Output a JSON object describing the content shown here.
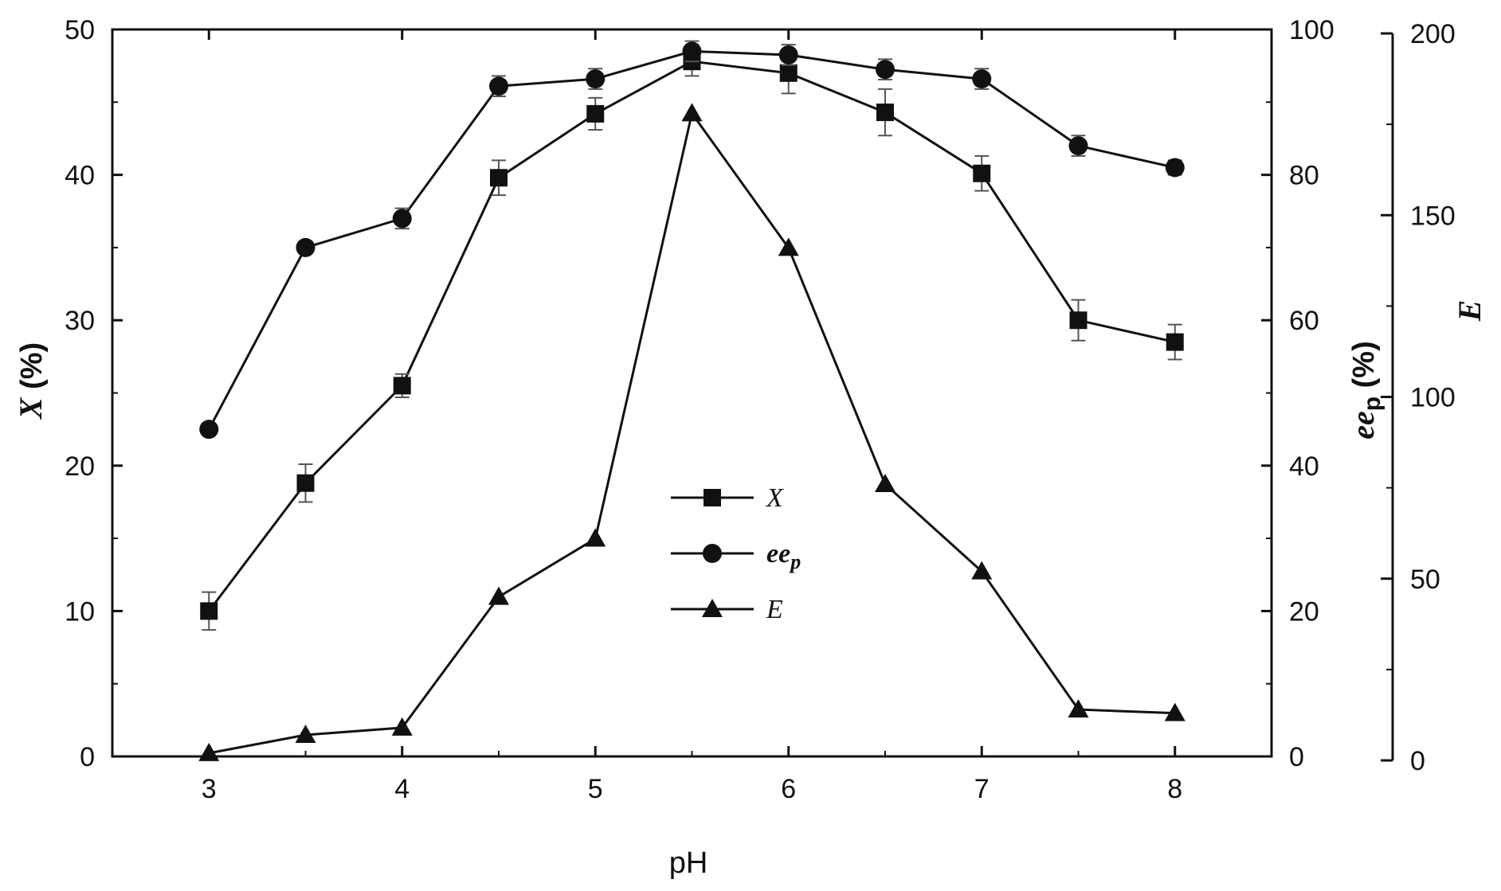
{
  "chart_data": {
    "type": "line",
    "title": "",
    "xlabel": "pH",
    "x": [
      3,
      3.5,
      4,
      4.5,
      5,
      5.5,
      6,
      6.5,
      7,
      7.5,
      8
    ],
    "xlim": [
      2.5,
      8.5
    ],
    "xticks": [
      "3",
      "4",
      "5",
      "6",
      "7",
      "8"
    ],
    "axes": {
      "left": {
        "label_main": "X",
        "label_unit": " (%)",
        "ylim": [
          0,
          50
        ],
        "ticks": [
          "0",
          "10",
          "20",
          "30",
          "40",
          "50"
        ]
      },
      "right1": {
        "label_main": "ee",
        "label_sub": "p",
        "label_unit": " (%)",
        "ylim": [
          0,
          100
        ],
        "ticks": [
          "0",
          "20",
          "40",
          "60",
          "80",
          "100"
        ]
      },
      "right2": {
        "label_main": "E",
        "ylim": [
          0,
          200
        ],
        "ticks": [
          "0",
          "50",
          "100",
          "150",
          "200"
        ]
      }
    },
    "series": [
      {
        "name": "X",
        "axis": "left",
        "marker": "square",
        "values": [
          10.0,
          18.8,
          25.5,
          39.8,
          44.2,
          47.8,
          47.0,
          44.3,
          40.1,
          30.0,
          28.5
        ],
        "errors": [
          1.3,
          1.3,
          0.8,
          1.2,
          1.1,
          1.0,
          1.4,
          1.6,
          1.2,
          1.4,
          1.2
        ]
      },
      {
        "name": "ee",
        "name_sub": "p",
        "axis": "right1",
        "marker": "circle",
        "values": [
          45.0,
          70.0,
          74.0,
          92.2,
          93.2,
          97.0,
          96.5,
          94.5,
          93.2,
          84.0,
          81.0
        ],
        "errors": [
          0,
          0,
          1.4,
          1.4,
          1.4,
          1.4,
          1.4,
          1.4,
          1.4,
          1.4,
          1.0
        ]
      },
      {
        "name": "E",
        "axis": "right2",
        "marker": "triangle",
        "values": [
          2,
          7,
          9,
          45,
          61,
          178,
          141,
          76,
          52,
          14,
          13
        ],
        "errors": [
          0,
          0,
          0,
          0,
          0,
          0,
          0,
          0,
          0,
          0,
          0
        ]
      }
    ],
    "grid": false,
    "legend_position": "center"
  }
}
